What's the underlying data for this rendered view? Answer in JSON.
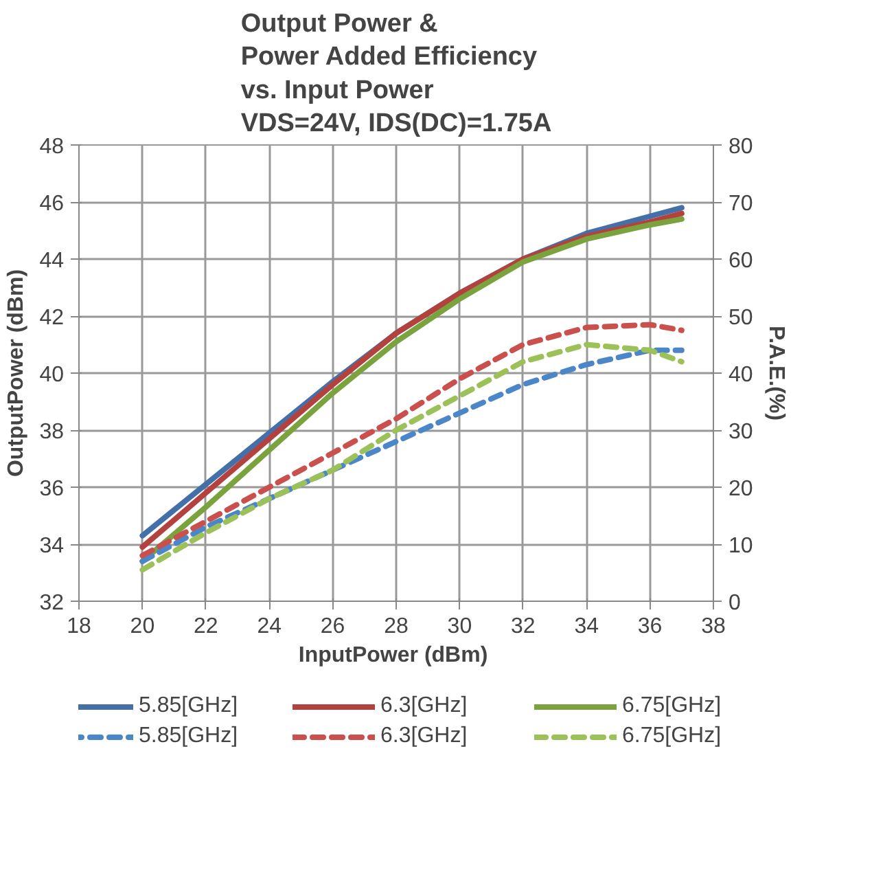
{
  "chart_data": {
    "type": "line",
    "title": "Output Power &\nPower Added Efficiency\nvs. Input Power\nVDS=24V, IDS(DC)=1.75A",
    "xlabel": "InputPower  (dBm)",
    "ylabel": "OutputPower (dBm)",
    "y2label": "P.A.E.(%)",
    "x": [
      20,
      22,
      24,
      26,
      28,
      30,
      32,
      34,
      36,
      37
    ],
    "series": [
      {
        "name": "5.85[GHz]",
        "color": "#4470aa",
        "line_style": "solid",
        "values": [
          34.3,
          36.1,
          37.9,
          39.7,
          41.4,
          42.8,
          44.0,
          44.9,
          45.5,
          45.8
        ]
      },
      {
        "name": "6.3[GHz]",
        "color": "#b3423f",
        "line_style": "solid",
        "values": [
          33.9,
          35.8,
          37.7,
          39.6,
          41.4,
          42.8,
          44.0,
          44.8,
          45.3,
          45.6
        ]
      },
      {
        "name": "6.75[GHz]",
        "color": "#7aa23d",
        "line_style": "solid",
        "values": [
          33.4,
          35.3,
          37.3,
          39.3,
          41.1,
          42.6,
          43.9,
          44.7,
          45.2,
          45.4
        ]
      },
      {
        "name": "5.85[GHz]",
        "color": "#4a86c8",
        "line_style": "dashed",
        "axis": "y2",
        "values": [
          7,
          13,
          18,
          23,
          28,
          33,
          38,
          41.5,
          44,
          44
        ]
      },
      {
        "name": "6.3[GHz]",
        "color": "#c9504d",
        "line_style": "dashed",
        "axis": "y2",
        "values": [
          8,
          14,
          20,
          26,
          32,
          39,
          45,
          48,
          48.5,
          47.5
        ]
      },
      {
        "name": "6.75[GHz]",
        "color": "#9bc158",
        "line_style": "dashed",
        "axis": "y2",
        "values": [
          5.5,
          12,
          18,
          23,
          30,
          36,
          42,
          45,
          44,
          42
        ]
      }
    ],
    "xlim": [
      18,
      38
    ],
    "xticks": [
      18,
      20,
      22,
      24,
      26,
      28,
      30,
      32,
      34,
      36,
      38
    ],
    "ylim": [
      32,
      48
    ],
    "yticks": [
      32,
      34,
      36,
      38,
      40,
      42,
      44,
      46,
      48
    ],
    "y2lim": [
      0,
      80
    ],
    "y2ticks": [
      0,
      10,
      20,
      30,
      40,
      50,
      60,
      70,
      80
    ],
    "grid": true,
    "legend": "bottom",
    "marker": "none"
  }
}
